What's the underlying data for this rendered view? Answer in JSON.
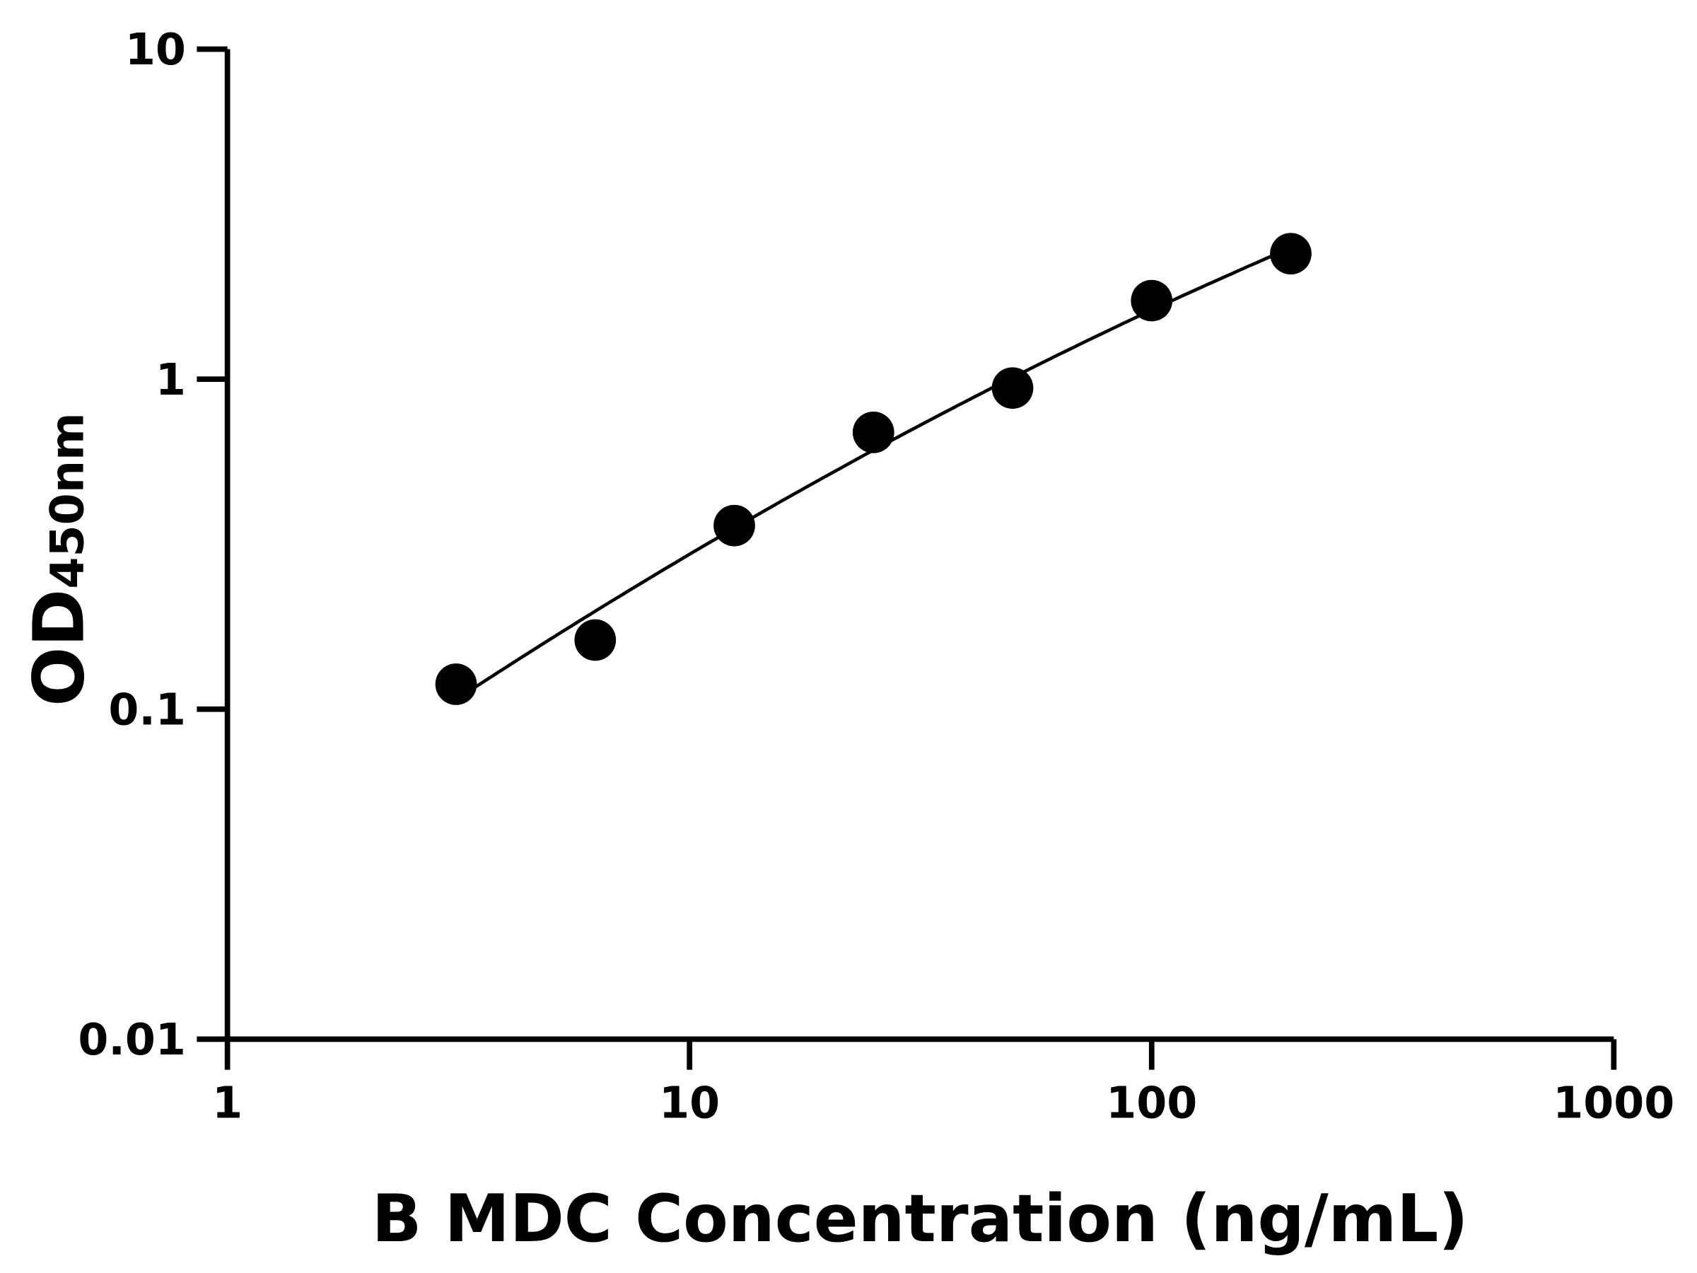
{
  "chart_data": {
    "type": "scatter",
    "title": "",
    "xlabel": "B MDC Concentration (ng/mL)",
    "ylabel_main": "OD",
    "ylabel_sub": "450nm",
    "x_scale": "log",
    "y_scale": "log",
    "xlim": [
      1,
      1000
    ],
    "ylim": [
      0.01,
      10
    ],
    "x_ticks": [
      "1",
      "10",
      "100",
      "1000"
    ],
    "y_ticks": [
      "0.01",
      "0.1",
      "1",
      "10"
    ],
    "grid": false,
    "fit_line": true,
    "series": [
      {
        "x": [
          3.125,
          6.25,
          12.5,
          25,
          50,
          100,
          200
        ],
        "y": [
          0.119,
          0.162,
          0.36,
          0.69,
          0.94,
          1.73,
          2.4
        ]
      }
    ],
    "colors": {
      "points": "#000000",
      "line": "#000000"
    }
  }
}
